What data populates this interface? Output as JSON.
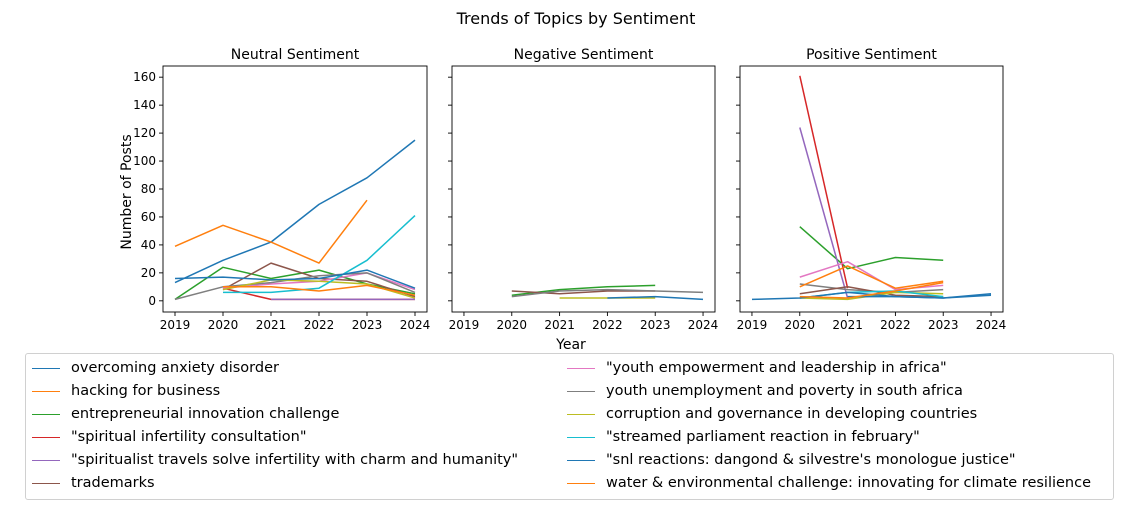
{
  "chart_data": {
    "type": "line",
    "title": "Trends of Topics by Sentiment",
    "xlabel": "Year",
    "ylabel": "Number of Posts",
    "x": [
      2019,
      2020,
      2021,
      2022,
      2023,
      2024
    ],
    "ylim": [
      -8,
      168
    ],
    "yticks": [
      0,
      20,
      40,
      60,
      80,
      100,
      120,
      140,
      160
    ],
    "grid": false,
    "legend_position": "below",
    "panels": [
      {
        "title": "Neutral Sentiment",
        "series": [
          {
            "name": "overcoming anxiety disorder",
            "x": [
              2019,
              2020,
              2021,
              2022,
              2023,
              2024
            ],
            "values": [
              13,
              29,
              42,
              69,
              88,
              115
            ]
          },
          {
            "name": "hacking for business",
            "x": [
              2019,
              2020,
              2021,
              2022,
              2023
            ],
            "values": [
              39,
              54,
              42,
              27,
              72
            ]
          },
          {
            "name": "entrepreneurial innovation challenge",
            "x": [
              2019,
              2020,
              2021,
              2022,
              2023,
              2024
            ],
            "values": [
              1,
              24,
              16,
              22,
              12,
              5
            ]
          },
          {
            "name": "\"spiritual infertility consultation\"",
            "x": [
              2020,
              2021,
              2022,
              2023,
              2024
            ],
            "values": [
              9,
              1,
              1,
              1,
              1
            ]
          },
          {
            "name": "\"spiritualist travels solve infertility with charm and humanity\"",
            "x": [
              2021,
              2022,
              2023,
              2024
            ],
            "values": [
              1,
              1,
              1,
              1
            ]
          },
          {
            "name": "trademarks",
            "x": [
              2020,
              2021,
              2022,
              2023,
              2024
            ],
            "values": [
              8,
              27,
              16,
              14,
              3
            ]
          },
          {
            "name": "\"youth empowerment and leadership in africa\"",
            "x": [
              2020,
              2021,
              2022,
              2023,
              2024
            ],
            "values": [
              9,
              12,
              14,
              20,
              8
            ]
          },
          {
            "name": "youth unemployment and poverty in south africa",
            "x": [
              2019,
              2020,
              2021,
              2022,
              2023,
              2024
            ],
            "values": [
              1,
              10,
              13,
              18,
              20,
              6
            ]
          },
          {
            "name": "corruption and governance in developing countries",
            "x": [
              2020,
              2021,
              2022,
              2023,
              2024
            ],
            "values": [
              8,
              15,
              14,
              12,
              2
            ]
          },
          {
            "name": "\"streamed parliament reaction in february\"",
            "x": [
              2020,
              2021,
              2022,
              2023,
              2024
            ],
            "values": [
              6,
              6,
              9,
              29,
              61
            ]
          },
          {
            "name": "\"snl reactions: dangond & silvestre's monologue justice\"",
            "x": [
              2019,
              2020,
              2021,
              2022,
              2023,
              2024
            ],
            "values": [
              16,
              17,
              15,
              16,
              22,
              9
            ]
          },
          {
            "name": "water & environmental challenge: innovating for climate resilience",
            "x": [
              2020,
              2021,
              2022,
              2023,
              2024
            ],
            "values": [
              10,
              10,
              7,
              11,
              4
            ]
          }
        ]
      },
      {
        "title": "Negative Sentiment",
        "series": [
          {
            "name": "entrepreneurial innovation challenge",
            "x": [
              2020,
              2021,
              2022,
              2023
            ],
            "values": [
              4,
              8,
              10,
              11
            ]
          },
          {
            "name": "trademarks",
            "x": [
              2020,
              2021,
              2022,
              2023
            ],
            "values": [
              7,
              5,
              7,
              7
            ]
          },
          {
            "name": "youth unemployment and poverty in south africa",
            "x": [
              2020,
              2021,
              2022,
              2023,
              2024
            ],
            "values": [
              3,
              7,
              8,
              7,
              6
            ]
          },
          {
            "name": "corruption and governance in developing countries",
            "x": [
              2021,
              2022,
              2023
            ],
            "values": [
              2,
              2,
              2
            ]
          },
          {
            "name": "\"snl reactions: dangond & silvestre's monologue justice\"",
            "x": [
              2022,
              2023,
              2024
            ],
            "values": [
              2,
              3,
              1
            ]
          }
        ]
      },
      {
        "title": "Positive Sentiment",
        "series": [
          {
            "name": "entrepreneurial innovation challenge",
            "x": [
              2020,
              2021,
              2022,
              2023
            ],
            "values": [
              53,
              23,
              31,
              29
            ]
          },
          {
            "name": "\"spiritual infertility consultation\"",
            "x": [
              2020,
              2021
            ],
            "values": [
              161,
              9
            ]
          },
          {
            "name": "\"spiritualist travels solve infertility with charm and humanity\"",
            "x": [
              2020,
              2021
            ],
            "values": [
              124,
              2
            ]
          },
          {
            "name": "\"youth empowerment and leadership in africa\"",
            "x": [
              2020,
              2021,
              2022,
              2023
            ],
            "values": [
              17,
              28,
              8,
              11
            ]
          },
          {
            "name": "youth unemployment and poverty in south africa",
            "x": [
              2020,
              2021,
              2022,
              2023
            ],
            "values": [
              12,
              8,
              6,
              8
            ]
          },
          {
            "name": "trademarks",
            "x": [
              2020,
              2021,
              2022,
              2023
            ],
            "values": [
              5,
              10,
              4,
              3
            ]
          },
          {
            "name": "corruption and governance in developing countries",
            "x": [
              2020,
              2021,
              2022,
              2023
            ],
            "values": [
              2,
              1,
              6,
              5
            ]
          },
          {
            "name": "\"streamed parliament reaction in february\"",
            "x": [
              2020,
              2021,
              2022,
              2023
            ],
            "values": [
              2,
              6,
              7,
              3
            ]
          },
          {
            "name": "overcoming anxiety disorder",
            "x": [
              2019,
              2020,
              2021,
              2022,
              2023,
              2024
            ],
            "values": [
              1,
              2,
              6,
              3,
              2,
              5
            ]
          },
          {
            "name": "\"snl reactions: dangond & silvestre's monologue justice\"",
            "x": [
              2021,
              2022,
              2023,
              2024
            ],
            "values": [
              3,
              3,
              2,
              4
            ]
          },
          {
            "name": "water & environmental challenge: innovating for climate resilience",
            "x": [
              2020,
              2021,
              2022,
              2023
            ],
            "values": [
              10,
              25,
              9,
              14
            ]
          },
          {
            "name": "hacking for business",
            "x": [
              2020,
              2021,
              2022,
              2023
            ],
            "values": [
              3,
              2,
              7,
              13
            ]
          }
        ]
      }
    ]
  },
  "legend": {
    "position": "below",
    "items": [
      {
        "label": "overcoming anxiety disorder",
        "color": "#1f77b4"
      },
      {
        "label": "hacking for business",
        "color": "#ff7f0e"
      },
      {
        "label": "entrepreneurial innovation challenge",
        "color": "#2ca02c"
      },
      {
        "label": "\"spiritual infertility consultation\"",
        "color": "#d62728"
      },
      {
        "label": "\"spiritualist travels solve infertility with charm and humanity\"",
        "color": "#9467bd"
      },
      {
        "label": "trademarks",
        "color": "#8c564b"
      },
      {
        "label": "\"youth empowerment and leadership in africa\"",
        "color": "#e377c2"
      },
      {
        "label": "youth unemployment and poverty in south africa",
        "color": "#7f7f7f"
      },
      {
        "label": "corruption and governance in developing countries",
        "color": "#bcbd22"
      },
      {
        "label": "\"streamed parliament reaction in february\"",
        "color": "#17becf"
      },
      {
        "label": "\"snl reactions: dangond & silvestre's monologue justice\"",
        "color": "#1f77b4"
      },
      {
        "label": "water & environmental challenge: innovating for climate resilience",
        "color": "#ff7f0e"
      }
    ]
  }
}
